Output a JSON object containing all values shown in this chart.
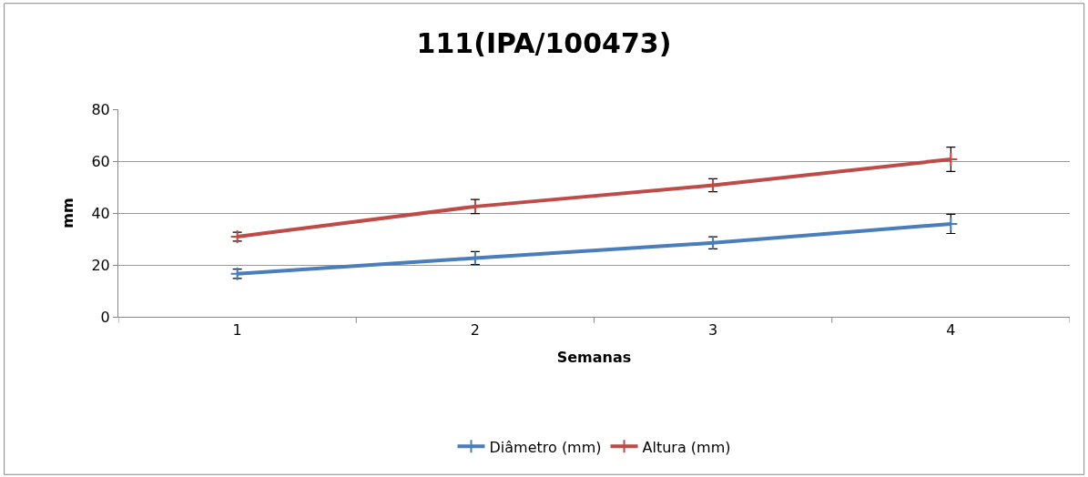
{
  "chart_data": {
    "type": "line",
    "title": "111(IPA/100473)",
    "xlabel": "Semanas",
    "ylabel": "mm",
    "categories": [
      "1",
      "2",
      "3",
      "4"
    ],
    "series": [
      {
        "name": "Diâmetro (mm)",
        "color": "#4a7ebb",
        "values": [
          16.6,
          22.6,
          28.5,
          35.8
        ],
        "errors": [
          1.8,
          2.5,
          2.3,
          3.7
        ]
      },
      {
        "name": "Altura (mm)",
        "color": "#be4b48",
        "values": [
          30.9,
          42.5,
          50.7,
          60.7
        ],
        "errors": [
          1.7,
          2.7,
          2.5,
          4.7
        ]
      }
    ],
    "ylim": [
      0,
      80
    ],
    "yticks": [
      0,
      20,
      40,
      60,
      80
    ],
    "grid": "y",
    "legend": "bottom",
    "marker": "cross",
    "line_style": "solid"
  }
}
